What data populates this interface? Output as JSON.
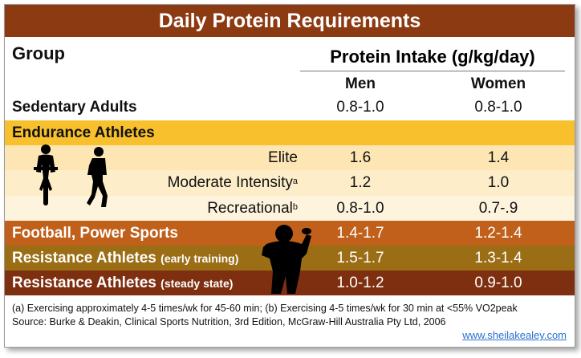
{
  "title": "Daily Protein Requirements",
  "header": {
    "group": "Group",
    "intake": "Protein Intake (g/kg/day)",
    "men": "Men",
    "women": "Women"
  },
  "rows": {
    "sedentary": {
      "label": "Sedentary Adults",
      "men": "0.8-1.0",
      "women": "0.8-1.0"
    },
    "endurance": {
      "label": "Endurance Athletes"
    },
    "elite": {
      "label": "Elite",
      "men": "1.6",
      "women": "1.4"
    },
    "moderate": {
      "label": "Moderate Intensity",
      "sup": "a",
      "men": "1.2",
      "women": "1.0"
    },
    "recreational": {
      "label": "Recreational",
      "sup": "b",
      "men": "0.8-1.0",
      "women": "0.7-.9"
    },
    "football": {
      "label": "Football, Power Sports",
      "men": "1.4-1.7",
      "women": "1.2-1.4"
    },
    "resistance_early": {
      "label": "Resistance Athletes",
      "note": "(early training)",
      "men": "1.5-1.7",
      "women": "1.3-1.4"
    },
    "resistance_steady": {
      "label": "Resistance Athletes",
      "note": "(steady state)",
      "men": "1.0-1.2",
      "women": "0.9-1.0"
    }
  },
  "footnotes": {
    "line1": "(a) Exercising approximately 4-5 times/wk for 45-60 min; (b) Exercising 4-5 times/wk for 30 min at <55% VO2peak",
    "line2": "Source: Burke & Deakin, Clinical Sports Nutrition, 3rd Edition, McGraw-Hill Australia Pty Ltd, 2006"
  },
  "website": "www.sheilakealey.com",
  "icons": {
    "cyclist": "cyclist-silhouette-icon",
    "runner": "runner-silhouette-icon",
    "football": "football-player-silhouette-icon"
  },
  "colors": {
    "title_bg": "#8b3a12",
    "endurance_bg": "#f7c02c",
    "football_bg": "#c0601b",
    "resistance_early_bg": "#9b6d14",
    "resistance_steady_bg": "#7e2f10"
  }
}
